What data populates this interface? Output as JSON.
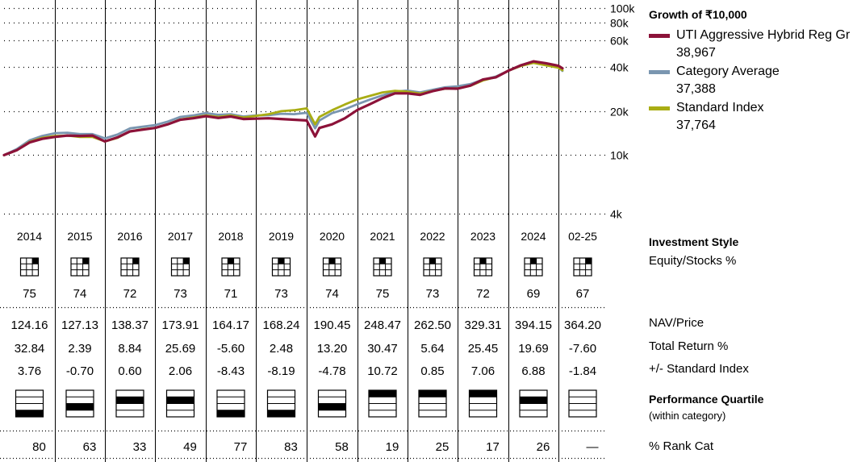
{
  "chart_data": {
    "type": "line",
    "title": "Growth of ₹10,000",
    "yscale": "log",
    "ylim": [
      4000,
      100000
    ],
    "yticks": [
      4000,
      10000,
      20000,
      40000,
      60000,
      80000,
      100000
    ],
    "ytick_labels": [
      "4k",
      "10k",
      "20k",
      "40k",
      "60k",
      "80k",
      "100k"
    ],
    "x": [
      "2014-01",
      "2014-04",
      "2014-07",
      "2014-10",
      "2015-01",
      "2015-04",
      "2015-07",
      "2015-10",
      "2016-01",
      "2016-04",
      "2016-07",
      "2016-10",
      "2017-01",
      "2017-04",
      "2017-07",
      "2017-10",
      "2018-01",
      "2018-04",
      "2018-07",
      "2018-10",
      "2019-01",
      "2019-04",
      "2019-07",
      "2019-10",
      "2020-01",
      "2020-03",
      "2020-04",
      "2020-07",
      "2020-10",
      "2021-01",
      "2021-04",
      "2021-07",
      "2021-10",
      "2022-01",
      "2022-04",
      "2022-07",
      "2022-10",
      "2023-01",
      "2023-04",
      "2023-07",
      "2023-10",
      "2024-01",
      "2024-04",
      "2024-07",
      "2024-10",
      "2025-01",
      "2025-02"
    ],
    "series": [
      {
        "name": "UTI Aggressive Hybrid Reg Gr",
        "color": "#8c1239",
        "values": [
          10000,
          10800,
          12200,
          12900,
          13300,
          13600,
          13500,
          13600,
          12400,
          13200,
          14500,
          14900,
          15300,
          16200,
          17400,
          17800,
          18400,
          17900,
          18300,
          17600,
          17700,
          17800,
          17600,
          17400,
          17200,
          13400,
          15300,
          16200,
          17800,
          20300,
          22200,
          24400,
          26300,
          26300,
          25700,
          27200,
          28400,
          28300,
          29700,
          32700,
          33800,
          37500,
          40800,
          43400,
          42100,
          40500,
          38967
        ]
      },
      {
        "name": "Category Average",
        "color": "#7a96b0",
        "values": [
          10000,
          11000,
          12600,
          13500,
          14100,
          14200,
          13900,
          13900,
          13000,
          13800,
          15200,
          15600,
          16000,
          16900,
          18200,
          18600,
          19300,
          18800,
          19000,
          18300,
          18600,
          18700,
          19100,
          19000,
          19400,
          15200,
          17200,
          19300,
          20500,
          22200,
          23900,
          25500,
          27000,
          27500,
          26700,
          27800,
          28900,
          29400,
          30400,
          32600,
          34200,
          37500,
          40900,
          43200,
          41800,
          39600,
          37388
        ]
      },
      {
        "name": "Standard Index",
        "color": "#a9ad14",
        "values": [
          10000,
          10800,
          12300,
          13100,
          13500,
          13600,
          13300,
          13300,
          12400,
          13100,
          14500,
          15000,
          15300,
          16200,
          17500,
          18000,
          18600,
          18200,
          18600,
          18000,
          18500,
          19000,
          19900,
          20200,
          20800,
          16200,
          18200,
          20200,
          22100,
          24000,
          25300,
          26700,
          27400,
          27000,
          26200,
          27300,
          28300,
          28400,
          29600,
          32200,
          33900,
          37500,
          40400,
          42400,
          40800,
          39300,
          37764
        ]
      }
    ],
    "legend_values": [
      "38,967",
      "37,388",
      "37,764"
    ],
    "legend_position": "right"
  },
  "periods": [
    "2014",
    "2015",
    "2016",
    "2017",
    "2018",
    "2019",
    "2020",
    "2021",
    "2022",
    "2023",
    "2024",
    "02-25"
  ],
  "investment_style": {
    "title": "Investment Style",
    "subtitle": "Equity/Stocks %",
    "boxes": [
      2,
      2,
      2,
      2,
      1,
      1,
      1,
      1,
      1,
      1,
      1,
      2
    ],
    "values": [
      "75",
      "74",
      "72",
      "73",
      "71",
      "73",
      "74",
      "75",
      "73",
      "72",
      "69",
      "67"
    ]
  },
  "nav_price": {
    "label": "NAV/Price",
    "values": [
      "124.16",
      "127.13",
      "138.37",
      "173.91",
      "164.17",
      "168.24",
      "190.45",
      "248.47",
      "262.50",
      "329.31",
      "394.15",
      "364.20"
    ]
  },
  "total_return": {
    "label": "Total Return %",
    "values": [
      "32.84",
      "2.39",
      "8.84",
      "25.69",
      "-5.60",
      "2.48",
      "13.20",
      "30.47",
      "5.64",
      "25.45",
      "19.69",
      "-7.60"
    ]
  },
  "vs_index": {
    "label": "+/- Standard Index",
    "values": [
      "3.76",
      "-0.70",
      "0.60",
      "2.06",
      "-8.43",
      "-8.19",
      "-4.78",
      "10.72",
      "0.85",
      "7.06",
      "6.88",
      "-1.84"
    ]
  },
  "performance_quartile": {
    "title": "Performance Quartile",
    "subtitle": "(within category)",
    "quartiles": [
      4,
      3,
      2,
      2,
      4,
      4,
      3,
      1,
      1,
      1,
      2,
      0
    ]
  },
  "rank_cat": {
    "label": "% Rank Cat",
    "values": [
      "80",
      "63",
      "33",
      "49",
      "77",
      "83",
      "58",
      "19",
      "25",
      "17",
      "26",
      "—"
    ]
  }
}
